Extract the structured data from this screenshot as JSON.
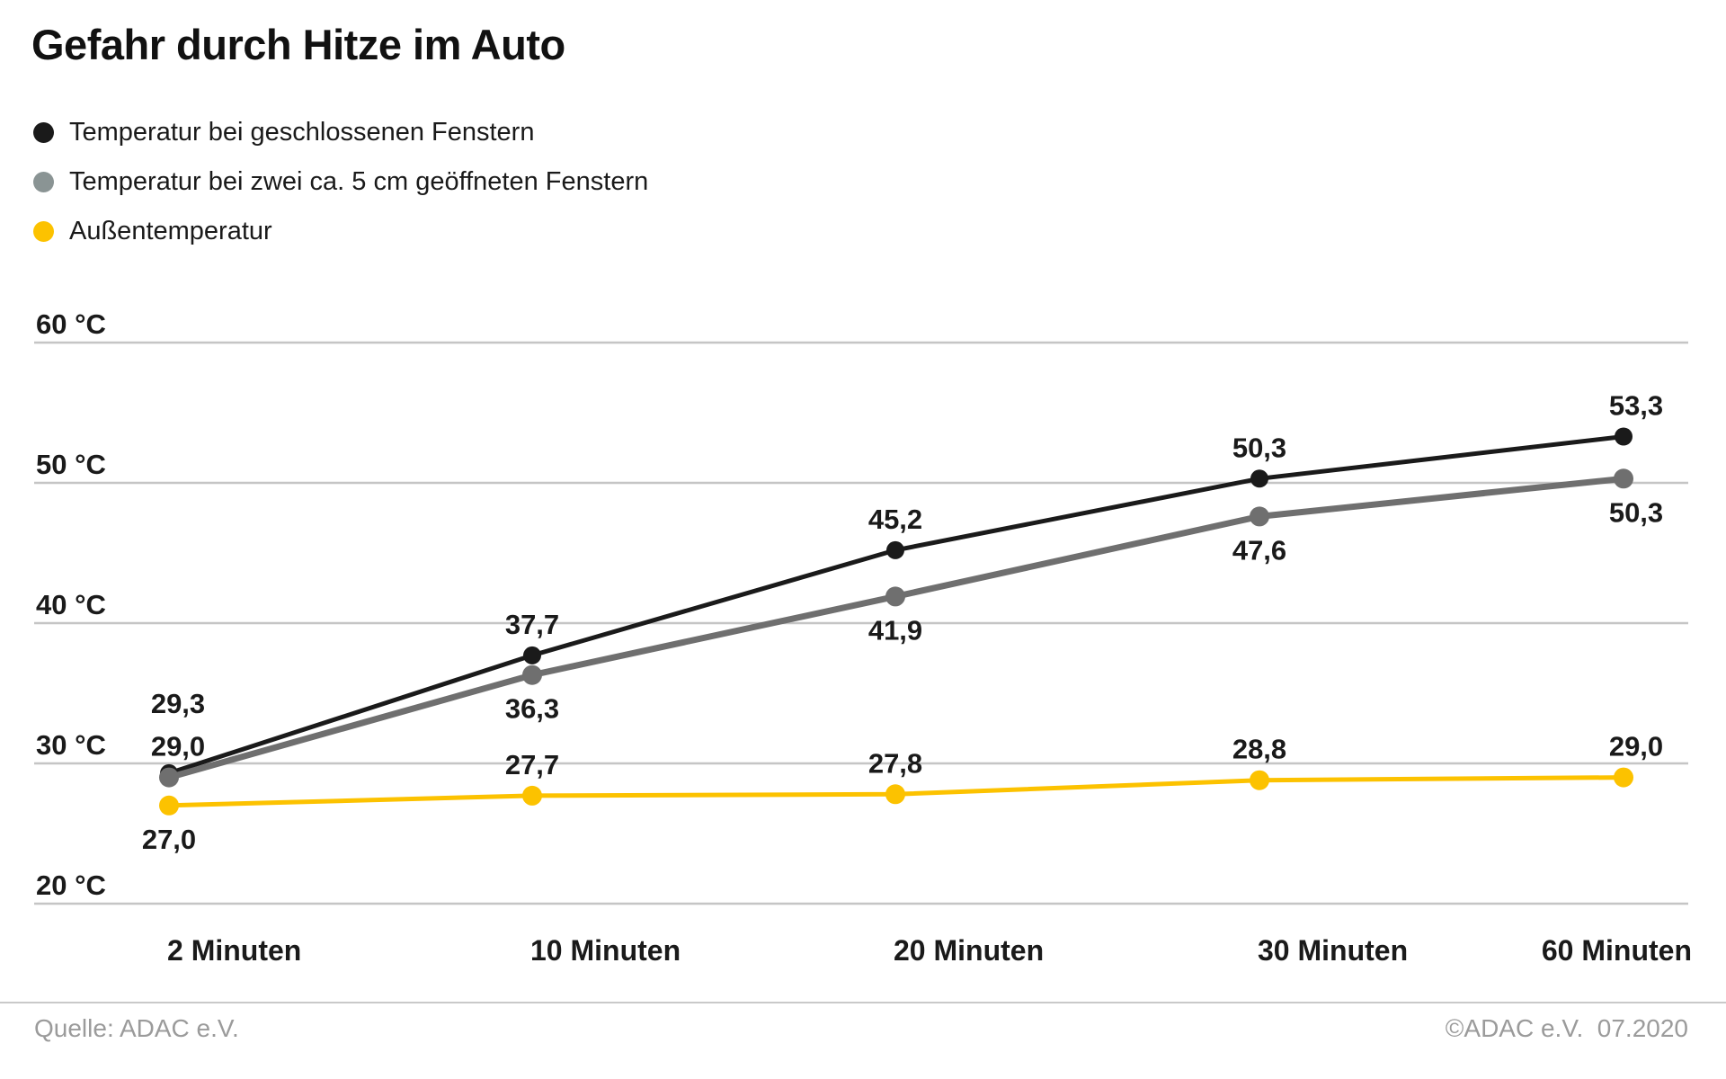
{
  "title": "Gefahr durch Hitze im Auto",
  "footer": {
    "source": "Quelle: ADAC e.V.",
    "copyright": "©ADAC e.V.  07.2020"
  },
  "chart_data": {
    "type": "line",
    "title": "Gefahr durch Hitze im Auto",
    "categories": [
      "2 Minuten",
      "10 Minuten",
      "20 Minuten",
      "30 Minuten",
      "60 Minuten"
    ],
    "y_axis": {
      "unit": "°C",
      "ticks": [
        60,
        50,
        40,
        30,
        20
      ],
      "tick_labels": [
        "60 °C",
        "50 °C",
        "40 °C",
        "30 °C",
        "20 °C"
      ],
      "range": [
        20,
        60
      ]
    },
    "grid": true,
    "legend_position": "top-left",
    "series": [
      {
        "name": "Temperatur bei geschlossenen Fenstern",
        "color": "#1a1a1a",
        "legend_color": "#1a1a1a",
        "values": [
          29.3,
          37.7,
          45.2,
          50.3,
          53.3
        ],
        "labels": [
          "29,3",
          "37,7",
          "45,2",
          "50,3",
          "53,3"
        ]
      },
      {
        "name": "Temperatur bei zwei ca. 5 cm geöffneten Fenstern",
        "color": "#6f6f6f",
        "legend_color": "#8a9494",
        "values": [
          29.0,
          36.3,
          41.9,
          47.6,
          50.3
        ],
        "labels": [
          "29,0",
          "36,3",
          "41,9",
          "47,6",
          "50,3"
        ]
      },
      {
        "name": "Außentemperatur",
        "color": "#fcc200",
        "legend_color": "#fcc200",
        "values": [
          27.0,
          27.7,
          27.8,
          28.8,
          29.0
        ],
        "labels": [
          "27,0",
          "27,7",
          "27,8",
          "28,8",
          "29,0"
        ]
      }
    ]
  }
}
